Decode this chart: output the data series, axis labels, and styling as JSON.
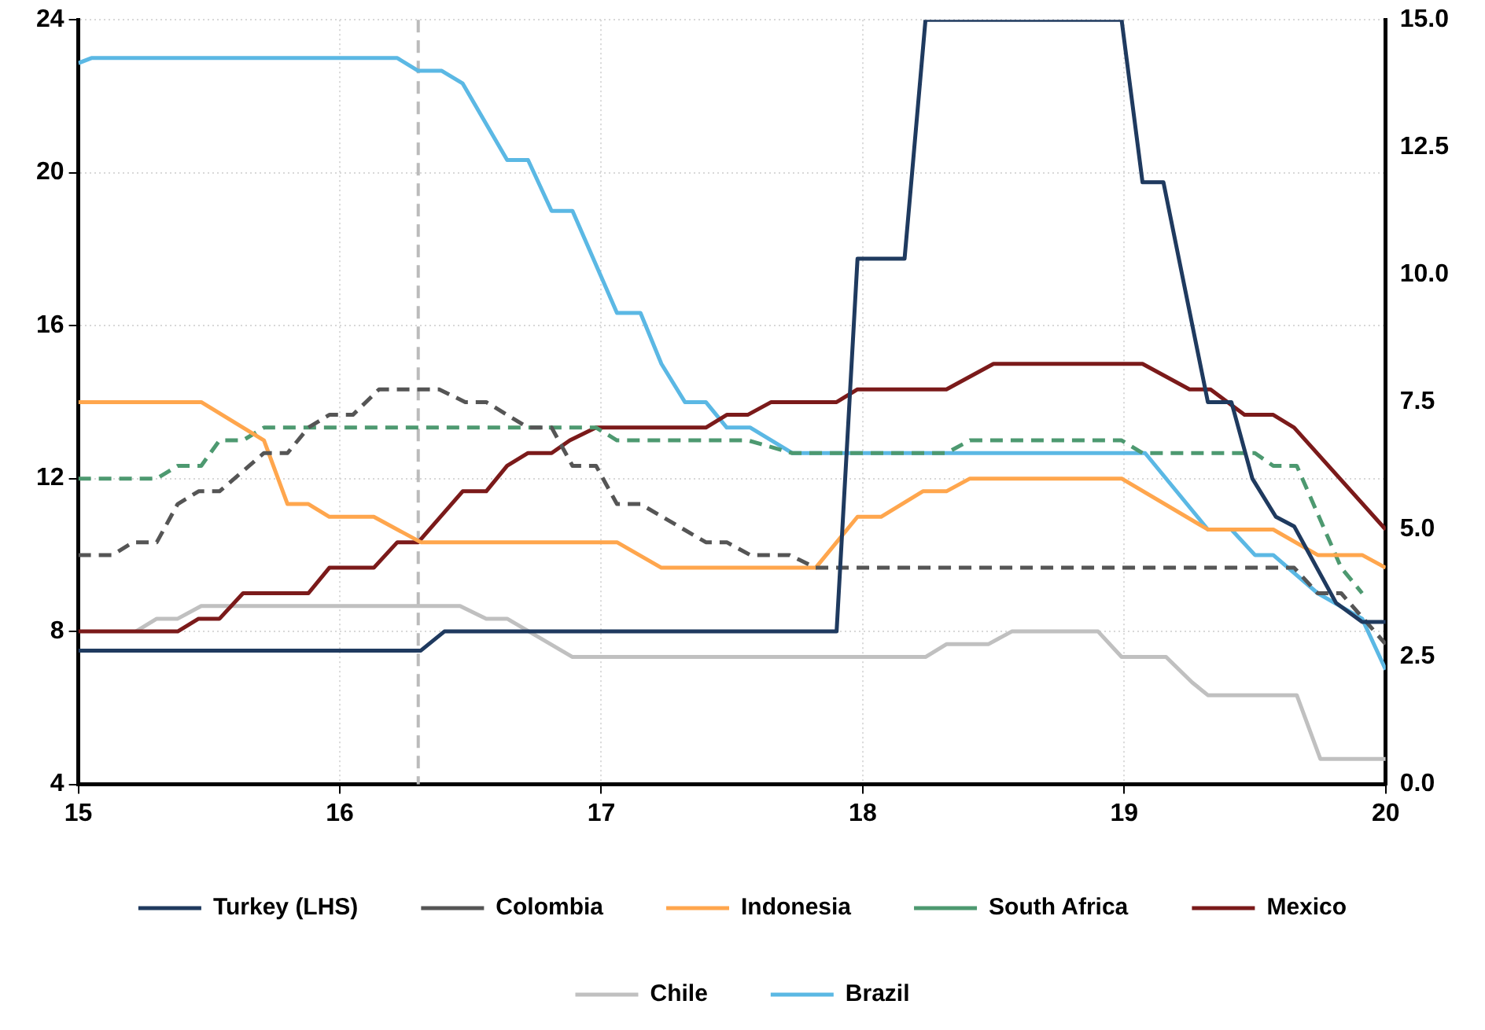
{
  "chart_data": {
    "type": "line",
    "xlim": [
      15,
      20
    ],
    "xticks": [
      15,
      16,
      17,
      18,
      19,
      20
    ],
    "ylim": [
      4,
      24
    ],
    "yticks": [
      4,
      8,
      12,
      16,
      20,
      24
    ],
    "y2lim": [
      0,
      15
    ],
    "y2ticks": [
      {
        "value": 0,
        "label": "0.0"
      },
      {
        "value": 2.5,
        "label": "2.5"
      },
      {
        "value": 5,
        "label": "5.0"
      },
      {
        "value": 7.5,
        "label": "7.5"
      },
      {
        "value": 10,
        "label": "10.0"
      },
      {
        "value": 12.5,
        "label": "12.5"
      },
      {
        "value": 15,
        "label": "15.0"
      }
    ],
    "grid": true,
    "legend": "bottom",
    "ref_lines": [
      {
        "axis": "x",
        "value": 16.3,
        "color": "#bbbbbb",
        "line_style": "dashed"
      }
    ],
    "series": [
      {
        "name": "Turkey (LHS)",
        "color": "#1f3a5f",
        "line_style": "solid",
        "x": [
          15,
          16.31,
          16.4,
          17.9,
          17.98,
          18.16,
          18.24,
          18.99,
          19.07,
          19.15,
          19.32,
          19.41,
          19.49,
          19.58,
          19.65,
          19.81,
          19.91,
          20
        ],
        "values": [
          7.5,
          7.5,
          8,
          8,
          17.75,
          17.75,
          24,
          24,
          19.75,
          19.75,
          14,
          14,
          12,
          11,
          10.75,
          8.75,
          8.25,
          8.25
        ]
      },
      {
        "name": "Colombia",
        "color": "#555555",
        "axis": "y2",
        "line_style": "dashed",
        "x": [
          15,
          15.13,
          15.21,
          15.3,
          15.38,
          15.46,
          15.54,
          15.71,
          15.8,
          15.88,
          15.96,
          16.05,
          16.15,
          16.38,
          16.48,
          16.56,
          16.72,
          16.81,
          16.89,
          16.98,
          17.06,
          17.15,
          17.4,
          17.48,
          17.57,
          17.72,
          17.82,
          19.65,
          19.74,
          19.83,
          20
        ],
        "values": [
          4.5,
          4.5,
          4.75,
          4.75,
          5.5,
          5.75,
          5.75,
          6.5,
          6.5,
          7,
          7.25,
          7.25,
          7.75,
          7.75,
          7.5,
          7.5,
          7,
          7,
          6.25,
          6.25,
          5.5,
          5.5,
          4.75,
          4.75,
          4.5,
          4.5,
          4.25,
          4.25,
          3.75,
          3.75,
          2.75
        ]
      },
      {
        "name": "Indonesia",
        "color": "#ffa64d",
        "axis": "y2",
        "line_style": "solid",
        "x": [
          15,
          15.47,
          15.71,
          15.8,
          15.88,
          15.96,
          16.13,
          16.31,
          17.06,
          17.23,
          17.82,
          17.98,
          18.07,
          18.23,
          18.32,
          18.41,
          18.99,
          19.32,
          19.57,
          19.74,
          19.91,
          20
        ],
        "values": [
          7.5,
          7.5,
          6.75,
          5.5,
          5.5,
          5.25,
          5.25,
          4.75,
          4.75,
          4.25,
          4.25,
          5.25,
          5.25,
          5.75,
          5.75,
          6,
          6,
          5,
          5,
          4.5,
          4.5,
          4.25
        ]
      },
      {
        "name": "South Africa",
        "color": "#4d9970",
        "axis": "y2",
        "line_style": "dashed",
        "x": [
          15,
          15.3,
          15.38,
          15.47,
          15.54,
          15.63,
          15.71,
          16.98,
          17.06,
          17.56,
          17.73,
          18.32,
          18.41,
          18.99,
          19.07,
          19.5,
          19.57,
          19.66,
          19.83,
          19.91
        ],
        "values": [
          6,
          6,
          6.25,
          6.25,
          6.75,
          6.75,
          7,
          7,
          6.75,
          6.75,
          6.5,
          6.5,
          6.75,
          6.75,
          6.5,
          6.5,
          6.25,
          6.25,
          4.25,
          3.75
        ]
      },
      {
        "name": "Mexico",
        "color": "#7b1a1a",
        "axis": "y2",
        "line_style": "solid",
        "x": [
          15,
          15.38,
          15.46,
          15.54,
          15.63,
          15.88,
          15.96,
          16.13,
          16.22,
          16.3,
          16.47,
          16.56,
          16.64,
          16.72,
          16.81,
          16.88,
          16.98,
          17.4,
          17.48,
          17.56,
          17.65,
          17.9,
          17.98,
          18.32,
          18.5,
          19.07,
          19.25,
          19.33,
          19.46,
          19.57,
          19.65,
          20
        ],
        "values": [
          3,
          3,
          3.25,
          3.25,
          3.75,
          3.75,
          4.25,
          4.25,
          4.75,
          4.75,
          5.75,
          5.75,
          6.25,
          6.5,
          6.5,
          6.75,
          7,
          7,
          7.25,
          7.25,
          7.5,
          7.5,
          7.75,
          7.75,
          8.25,
          8.25,
          7.75,
          7.75,
          7.25,
          7.25,
          7,
          5
        ]
      },
      {
        "name": "Chile",
        "color": "#c0c0c0",
        "axis": "y2",
        "line_style": "solid",
        "x": [
          15.22,
          15.3,
          15.38,
          15.47,
          16.46,
          16.56,
          16.64,
          16.89,
          18.24,
          18.32,
          18.48,
          18.57,
          18.9,
          18.99,
          19.16,
          19.26,
          19.32,
          19.66,
          19.75,
          20
        ],
        "values": [
          3,
          3.25,
          3.25,
          3.5,
          3.5,
          3.25,
          3.25,
          2.5,
          2.5,
          2.75,
          2.75,
          3,
          3,
          2.5,
          2.5,
          2,
          1.75,
          1.75,
          0.5,
          0.5
        ]
      },
      {
        "name": "Brazil",
        "color": "#5bb8e4",
        "axis": "y2",
        "line_style": "solid",
        "x": [
          15,
          15.05,
          16.22,
          16.3,
          16.39,
          16.47,
          16.64,
          16.72,
          16.81,
          16.89,
          17.06,
          17.15,
          17.23,
          17.32,
          17.4,
          17.48,
          17.57,
          17.73,
          19.08,
          19.32,
          19.41,
          19.5,
          19.57,
          19.74,
          19.91,
          20
        ],
        "values": [
          14.15,
          14.25,
          14.25,
          14,
          14,
          13.75,
          12.25,
          12.25,
          11.25,
          11.25,
          9.25,
          9.25,
          8.25,
          7.5,
          7.5,
          7,
          7,
          6.5,
          6.5,
          5,
          5,
          4.5,
          4.5,
          3.75,
          3.25,
          2.25
        ]
      }
    ]
  }
}
